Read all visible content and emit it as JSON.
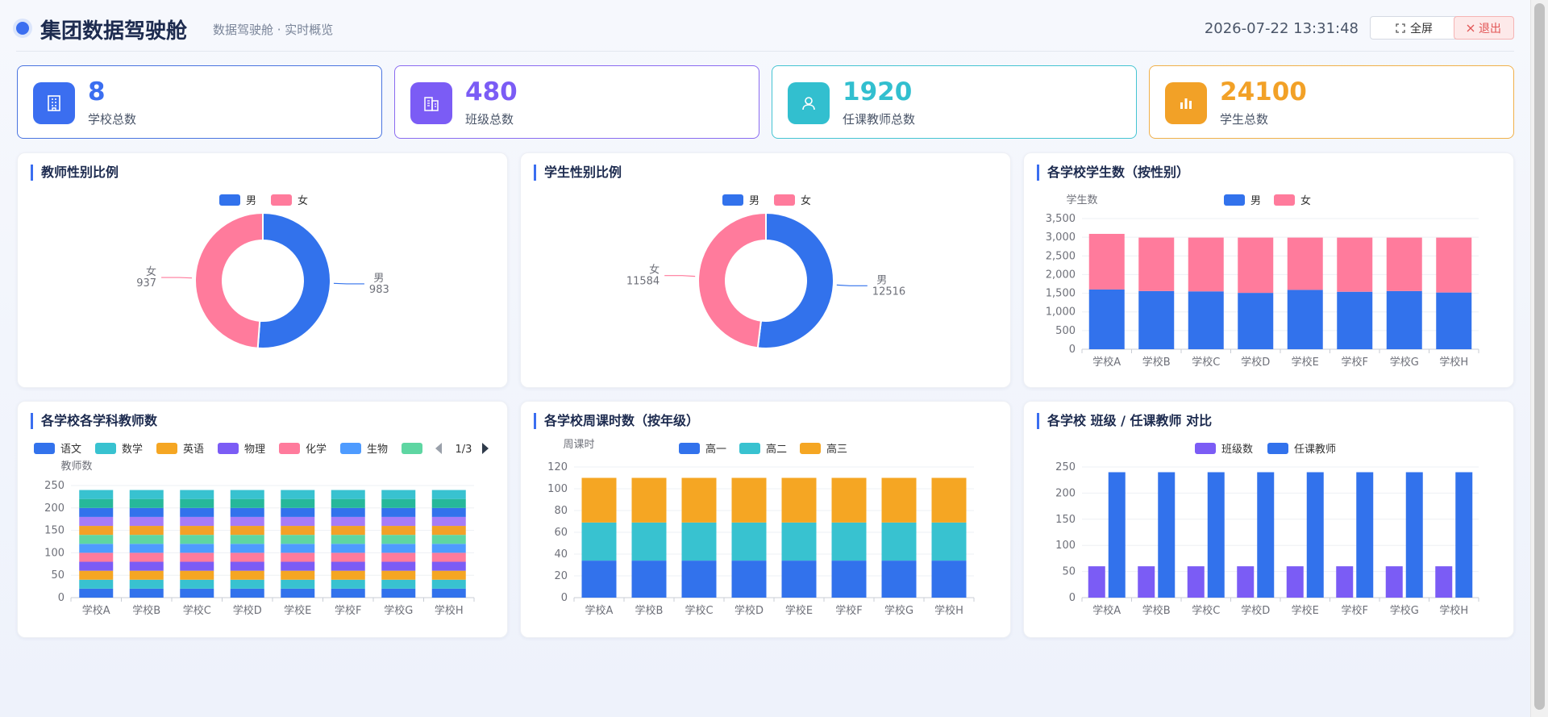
{
  "header": {
    "title": "集团数据驾驶舱",
    "subtitle": "数据驾驶舱 · 实时概览",
    "datetime": "2026-07-22 13:31:48",
    "fullscreen_label": "全屏",
    "exit_label": "退出"
  },
  "stats": [
    {
      "value": "8",
      "label": "学校总数",
      "color": "#3b6ef0",
      "border": "#4a74e0",
      "icon": "building-icon"
    },
    {
      "value": "480",
      "label": "班级总数",
      "color": "#7b5cf5",
      "border": "#8a6bf0",
      "icon": "office-icon"
    },
    {
      "value": "1920",
      "label": "任课教师总数",
      "color": "#32bfcf",
      "border": "#45c4d2",
      "icon": "user-icon"
    },
    {
      "value": "24100",
      "label": "学生总数",
      "color": "#f2a127",
      "border": "#f0b04a",
      "icon": "bar-chart-icon"
    }
  ],
  "colors": {
    "male": "#3272ec",
    "female": "#ff7b9c",
    "axis_text": "#6e7079",
    "grid": "#eef0f4"
  },
  "panels": {
    "teacher_gender": {
      "title": "教师性别比例"
    },
    "student_gender": {
      "title": "学生性别比例"
    },
    "school_students": {
      "title": "各学校学生数（按性别）"
    },
    "subject_teachers": {
      "title": "各学校各学科教师数"
    },
    "weekly_hours": {
      "title": "各学校周课时数（按年级）"
    },
    "class_teacher": {
      "title": "各学校 班级 / 任课教师 对比"
    }
  },
  "chart_data": [
    {
      "type": "pie",
      "title": "教师性别比例",
      "legend": [
        "男",
        "女"
      ],
      "slices": [
        {
          "name": "男",
          "value": 983,
          "color": "#3272ec"
        },
        {
          "name": "女",
          "value": 937,
          "color": "#ff7b9c"
        }
      ]
    },
    {
      "type": "pie",
      "title": "学生性别比例",
      "legend": [
        "男",
        "女"
      ],
      "slices": [
        {
          "name": "男",
          "value": 12516,
          "color": "#3272ec"
        },
        {
          "name": "女",
          "value": 11584,
          "color": "#ff7b9c"
        }
      ]
    },
    {
      "type": "bar",
      "stacked": true,
      "title": "各学校学生数（按性别）",
      "ylabel": "学生数",
      "ylim": [
        0,
        3500
      ],
      "yticks": [
        "0",
        "500",
        "1,000",
        "1,500",
        "2,000",
        "2,500",
        "3,000",
        "3,500"
      ],
      "categories": [
        "学校A",
        "学校B",
        "学校C",
        "学校D",
        "学校E",
        "学校F",
        "学校G",
        "学校H"
      ],
      "series": [
        {
          "name": "男",
          "color": "#3272ec",
          "values": [
            1600,
            1560,
            1550,
            1510,
            1590,
            1540,
            1560,
            1520
          ]
        },
        {
          "name": "女",
          "color": "#ff7b9c",
          "values": [
            1490,
            1430,
            1440,
            1480,
            1400,
            1450,
            1430,
            1470
          ]
        }
      ]
    },
    {
      "type": "bar",
      "stacked": true,
      "title": "各学校各学科教师数",
      "ylabel": "教师数",
      "ylim": [
        0,
        250
      ],
      "yticks": [
        "0",
        "50",
        "100",
        "150",
        "200",
        "250"
      ],
      "legend_page": "1/3",
      "categories": [
        "学校A",
        "学校B",
        "学校C",
        "学校D",
        "学校E",
        "学校F",
        "学校G",
        "学校H"
      ],
      "series": [
        {
          "name": "语文",
          "color": "#3272ec",
          "values": [
            20,
            20,
            20,
            20,
            20,
            20,
            20,
            20
          ]
        },
        {
          "name": "数学",
          "color": "#38c2d0",
          "values": [
            20,
            20,
            20,
            20,
            20,
            20,
            20,
            20
          ]
        },
        {
          "name": "英语",
          "color": "#f5a623",
          "values": [
            20,
            20,
            20,
            20,
            20,
            20,
            20,
            20
          ]
        },
        {
          "name": "物理",
          "color": "#7b5cf5",
          "values": [
            20,
            20,
            20,
            20,
            20,
            20,
            20,
            20
          ]
        },
        {
          "name": "化学",
          "color": "#ff7b9c",
          "values": [
            20,
            20,
            20,
            20,
            20,
            20,
            20,
            20
          ]
        },
        {
          "name": "生物",
          "color": "#4e9bff",
          "values": [
            20,
            20,
            20,
            20,
            20,
            20,
            20,
            20
          ]
        },
        {
          "name": "",
          "color": "#5ed6a2",
          "values": [
            20,
            20,
            20,
            20,
            20,
            20,
            20,
            20
          ]
        },
        {
          "name": "",
          "color": "#f2a127",
          "values": [
            20,
            20,
            20,
            20,
            20,
            20,
            20,
            20
          ]
        },
        {
          "name": "",
          "color": "#a67cf7",
          "values": [
            20,
            20,
            20,
            20,
            20,
            20,
            20,
            20
          ]
        },
        {
          "name": "",
          "color": "#3272ec",
          "values": [
            20,
            20,
            20,
            20,
            20,
            20,
            20,
            20
          ]
        },
        {
          "name": "",
          "color": "#26b89a",
          "values": [
            20,
            20,
            20,
            20,
            20,
            20,
            20,
            20
          ]
        },
        {
          "name": "",
          "color": "#38c2d0",
          "values": [
            20,
            20,
            20,
            20,
            20,
            20,
            20,
            20
          ]
        }
      ],
      "legend_visible": [
        "语文",
        "数学",
        "英语",
        "物理",
        "化学",
        "生物",
        ""
      ]
    },
    {
      "type": "bar",
      "stacked": true,
      "title": "各学校周课时数（按年级）",
      "ylabel": "周课时",
      "ylim": [
        0,
        120
      ],
      "yticks": [
        "0",
        "20",
        "40",
        "60",
        "80",
        "100",
        "120"
      ],
      "categories": [
        "学校A",
        "学校B",
        "学校C",
        "学校D",
        "学校E",
        "学校F",
        "学校G",
        "学校H"
      ],
      "series": [
        {
          "name": "高一",
          "color": "#3272ec",
          "values": [
            34,
            34,
            34,
            34,
            34,
            34,
            34,
            34
          ]
        },
        {
          "name": "高二",
          "color": "#38c2d0",
          "values": [
            35,
            35,
            35,
            35,
            35,
            35,
            35,
            35
          ]
        },
        {
          "name": "高三",
          "color": "#f5a623",
          "values": [
            41,
            41,
            41,
            41,
            41,
            41,
            41,
            41
          ]
        }
      ]
    },
    {
      "type": "bar",
      "stacked": false,
      "title": "各学校 班级 / 任课教师 对比",
      "ylim": [
        0,
        250
      ],
      "yticks": [
        "0",
        "50",
        "100",
        "150",
        "200",
        "250"
      ],
      "categories": [
        "学校A",
        "学校B",
        "学校C",
        "学校D",
        "学校E",
        "学校F",
        "学校G",
        "学校H"
      ],
      "series": [
        {
          "name": "班级数",
          "color": "#7b5cf5",
          "values": [
            60,
            60,
            60,
            60,
            60,
            60,
            60,
            60
          ]
        },
        {
          "name": "任课教师",
          "color": "#3272ec",
          "values": [
            240,
            240,
            240,
            240,
            240,
            240,
            240,
            240
          ]
        }
      ]
    }
  ]
}
